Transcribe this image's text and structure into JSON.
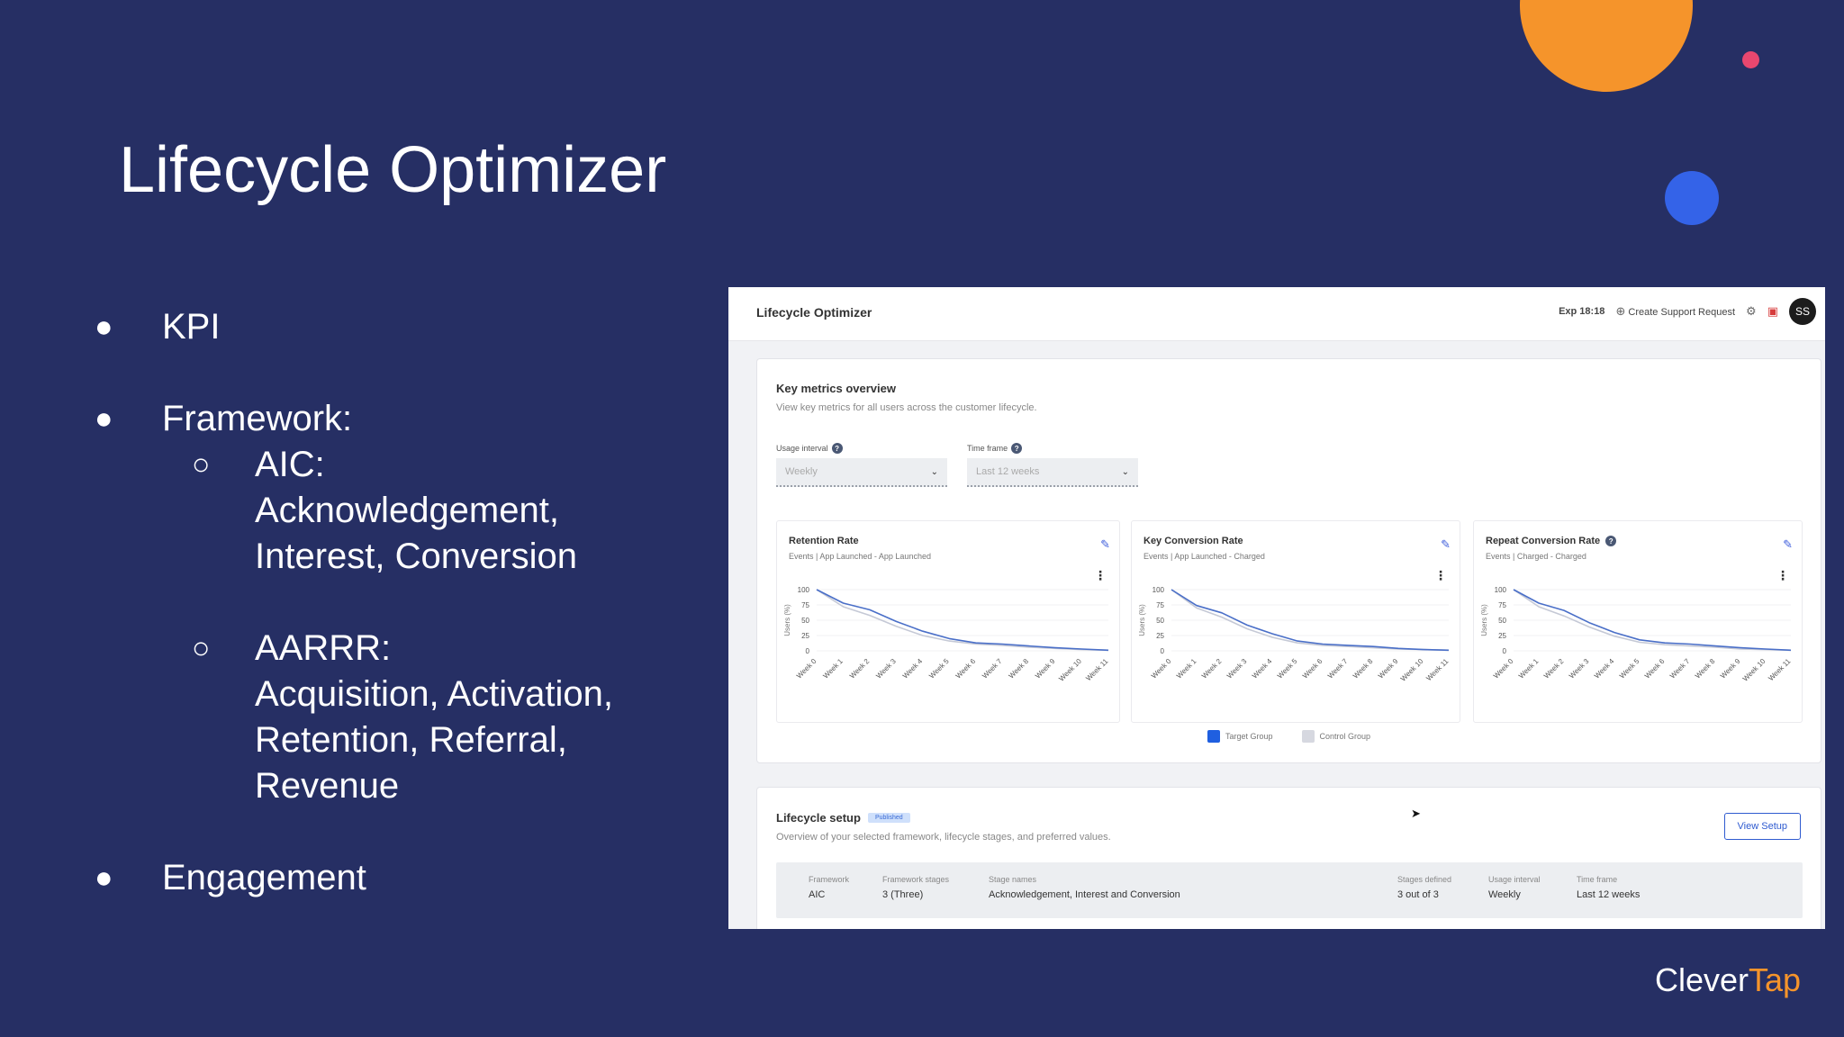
{
  "slide": {
    "title": "Lifecycle Optimizer",
    "bullets": [
      {
        "label": "KPI"
      },
      {
        "label": "Framework:"
      },
      {
        "label": "Engagement"
      }
    ],
    "sub_bullets": [
      {
        "lines": [
          "AIC:",
          "Acknowledgement,",
          "Interest, Conversion"
        ]
      },
      {
        "lines": [
          "AARRR:",
          "Acquisition, Activation,",
          "Retention, Referral,",
          "Revenue"
        ]
      }
    ],
    "brand": {
      "clever": "Clever",
      "tap": "Tap"
    },
    "colors": {
      "background": "#262f64",
      "orange": "#f5942b",
      "pink": "#e8476f",
      "blue": "#3463e8"
    }
  },
  "app": {
    "title": "Lifecycle Optimizer",
    "header": {
      "exp": "Exp 18:18",
      "support": "Create Support Request",
      "avatar": "SS",
      "support_icon": "lifebuoy-icon",
      "settings_icon": "settings-icon",
      "gift_icon": "gift-icon"
    },
    "metrics": {
      "title": "Key metrics overview",
      "subtitle": "View key metrics for all users across the customer lifecycle.",
      "usage_label": "Usage interval",
      "usage_value": "Weekly",
      "timeframe_label": "Time frame",
      "timeframe_value": "Last 12 weeks"
    },
    "legend": {
      "target": "Target Group",
      "control": "Control Group"
    },
    "setup": {
      "title": "Lifecycle setup",
      "badge": "Published",
      "subtitle": "Overview of your selected framework, lifecycle stages, and preferred values.",
      "button": "View Setup",
      "columns": [
        {
          "header": "Framework",
          "value": "AIC"
        },
        {
          "header": "Framework stages",
          "value": "3 (Three)"
        },
        {
          "header": "Stage names",
          "value": "Acknowledgement, Interest and Conversion"
        },
        {
          "header": "Stages defined",
          "value": "3 out of 3"
        },
        {
          "header": "Usage interval",
          "value": "Weekly"
        },
        {
          "header": "Time frame",
          "value": "Last 12 weeks"
        }
      ]
    }
  },
  "chart_data": [
    {
      "type": "line",
      "title": "Retention Rate",
      "subtitle": "Events | App Launched - App Launched",
      "ylabel": "Users (%)",
      "ylim": [
        0,
        100
      ],
      "yticks": [
        0,
        25,
        50,
        75,
        100
      ],
      "categories": [
        "Week 0",
        "Week 1",
        "Week 2",
        "Week 3",
        "Week 4",
        "Week 5",
        "Week 6",
        "Week 7",
        "Week 8",
        "Week 9",
        "Week 10",
        "Week 11"
      ],
      "series": [
        {
          "name": "Target Group",
          "color": "#4a6fc8",
          "values": [
            100,
            78,
            67,
            48,
            32,
            20,
            13,
            11,
            8,
            5,
            3,
            1
          ]
        },
        {
          "name": "Control Group",
          "color": "#c5c9d6",
          "values": [
            100,
            72,
            58,
            40,
            25,
            16,
            11,
            9,
            6,
            4,
            2,
            1
          ]
        }
      ]
    },
    {
      "type": "line",
      "title": "Key Conversion Rate",
      "subtitle": "Events | App Launched - Charged",
      "ylabel": "Users (%)",
      "ylim": [
        0,
        100
      ],
      "yticks": [
        0,
        25,
        50,
        75,
        100
      ],
      "categories": [
        "Week 0",
        "Week 1",
        "Week 2",
        "Week 3",
        "Week 4",
        "Week 5",
        "Week 6",
        "Week 7",
        "Week 8",
        "Week 9",
        "Week 10",
        "Week 11"
      ],
      "series": [
        {
          "name": "Target Group",
          "color": "#4a6fc8",
          "values": [
            100,
            74,
            62,
            42,
            28,
            16,
            11,
            9,
            7,
            4,
            2,
            1
          ]
        },
        {
          "name": "Control Group",
          "color": "#c5c9d6",
          "values": [
            100,
            70,
            55,
            36,
            22,
            13,
            9,
            7,
            5,
            3,
            2,
            1
          ]
        }
      ]
    },
    {
      "type": "line",
      "title": "Repeat Conversion Rate",
      "subtitle": "Events | Charged - Charged",
      "ylabel": "Users (%)",
      "ylim": [
        0,
        100
      ],
      "yticks": [
        0,
        25,
        50,
        75,
        100
      ],
      "categories": [
        "Week 0",
        "Week 1",
        "Week 2",
        "Week 3",
        "Week 4",
        "Week 5",
        "Week 6",
        "Week 7",
        "Week 8",
        "Week 9",
        "Week 10",
        "Week 11"
      ],
      "series": [
        {
          "name": "Target Group",
          "color": "#4a6fc8",
          "values": [
            100,
            78,
            66,
            46,
            30,
            18,
            13,
            11,
            8,
            5,
            3,
            1
          ]
        },
        {
          "name": "Control Group",
          "color": "#c5c9d6",
          "values": [
            100,
            72,
            57,
            39,
            24,
            14,
            10,
            8,
            6,
            3,
            2,
            1
          ]
        }
      ]
    }
  ]
}
